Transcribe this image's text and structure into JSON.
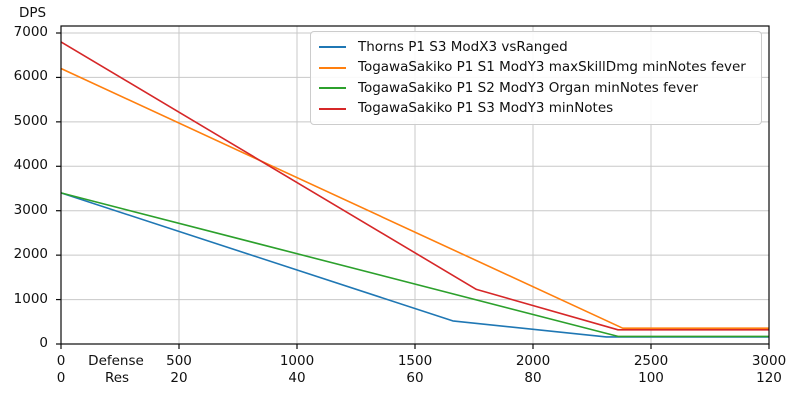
{
  "chart_data": {
    "type": "line",
    "title": "",
    "ylabel": "DPS",
    "grid": true,
    "legend_position": "upper right",
    "xlim": [
      0,
      3000
    ],
    "ylim": [
      0,
      7000
    ],
    "yticks": [
      0,
      1000,
      2000,
      3000,
      4000,
      5000,
      6000,
      7000
    ],
    "xlabel_rows": [
      {
        "label": "Defense",
        "ticks": [
          0,
          500,
          1000,
          1500,
          2000,
          2500,
          3000
        ]
      },
      {
        "label": "Res",
        "ticks": [
          0,
          20,
          40,
          60,
          80,
          100,
          120
        ]
      }
    ],
    "series": [
      {
        "name": "Thorns P1 S3 ModX3 vsRanged",
        "color": "#1f77b4",
        "points": [
          [
            0,
            3400
          ],
          [
            1660,
            520
          ],
          [
            2310,
            160
          ],
          [
            3000,
            160
          ]
        ]
      },
      {
        "name": "TogawaSakiko P1 S1 ModY3 maxSkillDmg minNotes fever",
        "color": "#ff7f0e",
        "points": [
          [
            0,
            6200
          ],
          [
            2380,
            355
          ],
          [
            3000,
            355
          ]
        ]
      },
      {
        "name": "TogawaSakiko P1 S2 ModY3 Organ minNotes fever",
        "color": "#2ca02c",
        "points": [
          [
            0,
            3400
          ],
          [
            2360,
            170
          ],
          [
            3000,
            170
          ]
        ]
      },
      {
        "name": "TogawaSakiko P1 S3 ModY3 minNotes",
        "color": "#d62728",
        "points": [
          [
            0,
            6800
          ],
          [
            1760,
            1230
          ],
          [
            2360,
            320
          ],
          [
            3000,
            320
          ]
        ]
      }
    ]
  }
}
